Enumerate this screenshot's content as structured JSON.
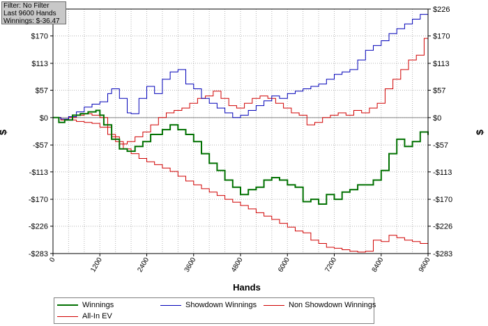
{
  "info_box": {
    "filter": "Filter: No Filter",
    "last_hands": "Last  9600 Hands",
    "winnings": "Winnings: $-36.47"
  },
  "chart_data": {
    "type": "line",
    "xlabel": "Hands",
    "ylabel_left": "$",
    "ylabel_right": "$",
    "xlim": [
      0,
      9600
    ],
    "ylim": [
      -283,
      226
    ],
    "x_ticks": [
      0,
      1200,
      2400,
      3600,
      4800,
      6000,
      7200,
      8400,
      9600
    ],
    "y_ticks": [
      -283,
      -226,
      -170,
      -113,
      -57,
      0,
      57,
      113,
      170,
      226
    ],
    "y_tick_labels": [
      "-$283",
      "-$226",
      "-$170",
      "-$113",
      "-$57",
      "$0",
      "$57",
      "$113",
      "$170",
      "$226"
    ],
    "grid": true,
    "legend_position": "bottom",
    "series": [
      {
        "name": "Winnings",
        "color": "#007000",
        "x": [
          0,
          150,
          300,
          500,
          700,
          900,
          1100,
          1200,
          1300,
          1500,
          1700,
          1900,
          2100,
          2300,
          2500,
          2800,
          3000,
          3200,
          3400,
          3600,
          3800,
          4000,
          4200,
          4400,
          4600,
          4800,
          5000,
          5200,
          5400,
          5600,
          5800,
          6000,
          6200,
          6400,
          6600,
          6800,
          7000,
          7200,
          7400,
          7600,
          7800,
          8000,
          8200,
          8400,
          8600,
          8800,
          9000,
          9200,
          9400,
          9600
        ],
        "y": [
          0,
          -10,
          -5,
          5,
          8,
          12,
          15,
          5,
          -15,
          -45,
          -65,
          -70,
          -60,
          -50,
          -35,
          -25,
          -15,
          -25,
          -35,
          -50,
          -75,
          -95,
          -110,
          -130,
          -145,
          -160,
          -150,
          -145,
          -130,
          -125,
          -130,
          -140,
          -145,
          -175,
          -170,
          -180,
          -160,
          -170,
          -155,
          -150,
          -140,
          -140,
          -130,
          -110,
          -75,
          -45,
          -60,
          -50,
          -30,
          -36
        ]
      },
      {
        "name": "Showdown Winnings",
        "color": "#0000b8",
        "x": [
          0,
          200,
          400,
          600,
          800,
          1000,
          1200,
          1400,
          1500,
          1700,
          1900,
          2000,
          2200,
          2400,
          2600,
          2800,
          3000,
          3200,
          3400,
          3600,
          3800,
          4000,
          4200,
          4400,
          4600,
          4800,
          5000,
          5200,
          5400,
          5600,
          5800,
          6000,
          6200,
          6400,
          6600,
          6800,
          7000,
          7200,
          7400,
          7600,
          7800,
          8000,
          8200,
          8400,
          8600,
          8800,
          9000,
          9200,
          9400,
          9600
        ],
        "y": [
          0,
          -3,
          2,
          12,
          22,
          28,
          33,
          50,
          60,
          40,
          10,
          8,
          40,
          65,
          50,
          80,
          95,
          100,
          70,
          60,
          40,
          30,
          20,
          10,
          0,
          5,
          15,
          25,
          35,
          45,
          40,
          50,
          55,
          60,
          65,
          70,
          80,
          90,
          95,
          100,
          120,
          140,
          150,
          160,
          175,
          185,
          195,
          205,
          215,
          226
        ]
      },
      {
        "name": "Non Showdown Winnings",
        "color": "#d00000",
        "x": [
          0,
          200,
          400,
          600,
          800,
          1000,
          1200,
          1400,
          1500,
          1700,
          1900,
          2100,
          2300,
          2500,
          2700,
          2900,
          3100,
          3300,
          3500,
          3700,
          3900,
          4100,
          4300,
          4500,
          4700,
          4900,
          5100,
          5300,
          5500,
          5700,
          5900,
          6100,
          6300,
          6500,
          6700,
          6900,
          7100,
          7300,
          7500,
          7700,
          7900,
          8100,
          8300,
          8500,
          8700,
          8900,
          9100,
          9300,
          9500,
          9600
        ],
        "y": [
          0,
          -5,
          0,
          5,
          8,
          5,
          0,
          -20,
          -40,
          -55,
          -50,
          -40,
          -30,
          -15,
          0,
          10,
          15,
          20,
          30,
          40,
          45,
          55,
          40,
          25,
          20,
          30,
          40,
          45,
          40,
          30,
          20,
          10,
          5,
          -15,
          -10,
          0,
          5,
          10,
          5,
          15,
          10,
          20,
          30,
          60,
          80,
          100,
          120,
          130,
          165,
          155
        ]
      },
      {
        "name": "All-In EV",
        "color": "#d00000",
        "x": [
          0,
          200,
          400,
          600,
          800,
          1000,
          1200,
          1400,
          1600,
          1800,
          2000,
          2200,
          2400,
          2600,
          2800,
          3000,
          3200,
          3400,
          3600,
          3800,
          4000,
          4200,
          4400,
          4600,
          4800,
          5000,
          5200,
          5400,
          5600,
          5800,
          6000,
          6200,
          6400,
          6600,
          6800,
          7000,
          7200,
          7400,
          7600,
          7800,
          8000,
          8200,
          8400,
          8600,
          8800,
          9000,
          9200,
          9400,
          9600
        ],
        "y": [
          0,
          -3,
          -5,
          -8,
          -10,
          -12,
          -20,
          -35,
          -50,
          -65,
          -75,
          -85,
          -92,
          -98,
          -105,
          -112,
          -122,
          -132,
          -140,
          -148,
          -155,
          -162,
          -170,
          -176,
          -183,
          -190,
          -198,
          -205,
          -212,
          -220,
          -228,
          -236,
          -240,
          -255,
          -262,
          -270,
          -272,
          -275,
          -278,
          -280,
          -278,
          -255,
          -258,
          -245,
          -250,
          -255,
          -258,
          -262,
          -260
        ]
      }
    ]
  },
  "legend": [
    {
      "label": "Winnings",
      "color": "#007000"
    },
    {
      "label": "Showdown Winnings",
      "color": "#0000b8"
    },
    {
      "label": "Non Showdown Winnings",
      "color": "#d00000"
    },
    {
      "label": "All-In EV",
      "color": "#d00000"
    }
  ]
}
